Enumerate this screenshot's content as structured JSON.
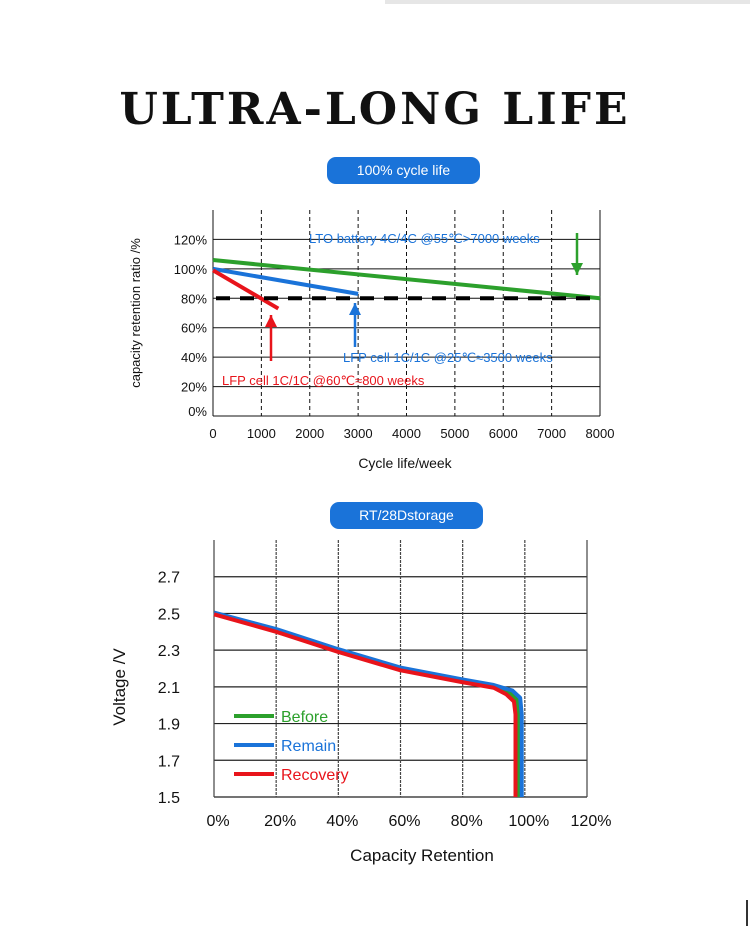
{
  "title": "ULTRA-LONG LIFE",
  "chart_data": [
    {
      "type": "line",
      "badge": "100% cycle life",
      "xlabel": "Cycle life/week",
      "ylabel": "capacity retention ratio /%",
      "xlim": [
        0,
        8000
      ],
      "ylim": [
        0,
        140
      ],
      "x_ticks": [
        "0",
        "1000",
        "2000",
        "3000",
        "4000",
        "5000",
        "6000",
        "7000",
        "8000"
      ],
      "y_ticks": [
        "0%",
        "20%",
        "40%",
        "60%",
        "80%",
        "100%",
        "120%"
      ],
      "threshold": 80,
      "series": [
        {
          "name": "LTO battery 4C/4C @55℃>7000 weeks",
          "color": "#2ca02c",
          "x": [
            0,
            8000
          ],
          "y": [
            106,
            80
          ]
        },
        {
          "name": "LFP cell 1C/1C @25℃≈3500 weeks",
          "color": "#1a73d9",
          "x": [
            0,
            3000
          ],
          "y": [
            100,
            83
          ]
        },
        {
          "name": "LFP cell 1C/1C @60℃≈800 weeks",
          "color": "#e8141b",
          "x": [
            0,
            1350
          ],
          "y": [
            99,
            73
          ]
        }
      ]
    },
    {
      "type": "line",
      "badge": "RT/28Dstorage",
      "xlabel": "Capacity Retention",
      "ylabel": "Voltage /V",
      "xlim": [
        0,
        120
      ],
      "ylim": [
        1.5,
        2.9
      ],
      "x_ticks": [
        "0%",
        "20%",
        "40%",
        "60%",
        "80%",
        "100%",
        "120%"
      ],
      "y_ticks": [
        "1.5",
        "1.7",
        "1.9",
        "2.1",
        "2.3",
        "2.5",
        "2.7"
      ],
      "series": [
        {
          "name": "Before",
          "color": "#2ca02c",
          "x": [
            0,
            20,
            40,
            60,
            80,
            90,
            95,
            97.5,
            98,
            98,
            98
          ],
          "y": [
            2.5,
            2.41,
            2.3,
            2.2,
            2.13,
            2.1,
            2.07,
            2.03,
            1.95,
            1.7,
            1.5
          ]
        },
        {
          "name": "Remain",
          "color": "#1a73d9",
          "x": [
            0,
            20,
            40,
            60,
            80,
            90,
            96,
            98.5,
            99,
            99,
            99
          ],
          "y": [
            2.505,
            2.415,
            2.305,
            2.205,
            2.14,
            2.11,
            2.08,
            2.04,
            1.95,
            1.7,
            1.5
          ]
        },
        {
          "name": "Recovery",
          "color": "#e8141b",
          "x": [
            0,
            20,
            40,
            60,
            80,
            90,
            94,
            96.5,
            97,
            97,
            97
          ],
          "y": [
            2.495,
            2.4,
            2.29,
            2.19,
            2.125,
            2.095,
            2.06,
            2.02,
            1.95,
            1.7,
            1.5
          ]
        }
      ]
    }
  ]
}
